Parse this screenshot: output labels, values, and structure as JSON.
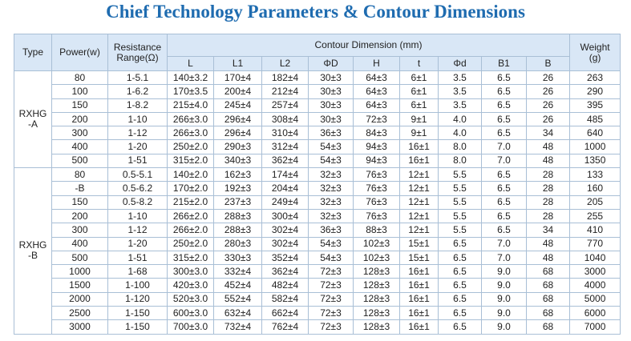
{
  "header": {
    "title": "Chief Technology Parameters & Contour Dimensions"
  },
  "table": {
    "head": {
      "type": "Type",
      "power": "Power(w)",
      "resistance_lines": [
        "Resistance",
        "Range(Ω)"
      ],
      "contour": "Contour Dimension (mm)",
      "weight_lines": [
        "Weight",
        "(g)"
      ],
      "dims": [
        "L",
        "L1",
        "L2",
        "ΦD",
        "H",
        "t",
        "Φd",
        "B1",
        "B"
      ]
    },
    "groups": [
      {
        "type_lines": [
          "RXHG",
          "-A"
        ],
        "rows": [
          [
            "80",
            "1-5.1",
            "140±3.2",
            "170±4",
            "182±4",
            "30±3",
            "64±3",
            "6±1",
            "3.5",
            "6.5",
            "26",
            "263"
          ],
          [
            "100",
            "1-6.2",
            "170±3.5",
            "200±4",
            "212±4",
            "30±3",
            "64±3",
            "6±1",
            "3.5",
            "6.5",
            "26",
            "290"
          ],
          [
            "150",
            "1-8.2",
            "215±4.0",
            "245±4",
            "257±4",
            "30±3",
            "64±3",
            "6±1",
            "3.5",
            "6.5",
            "26",
            "395"
          ],
          [
            "200",
            "1-10",
            "266±3.0",
            "296±4",
            "308±4",
            "30±3",
            "72±3",
            "9±1",
            "4.0",
            "6.5",
            "26",
            "485"
          ],
          [
            "300",
            "1-12",
            "266±3.0",
            "296±4",
            "310±4",
            "36±3",
            "84±3",
            "9±1",
            "4.0",
            "6.5",
            "34",
            "640"
          ],
          [
            "400",
            "1-20",
            "250±2.0",
            "290±3",
            "312±4",
            "54±3",
            "94±3",
            "16±1",
            "8.0",
            "7.0",
            "48",
            "1000"
          ],
          [
            "500",
            "1-51",
            "315±2.0",
            "340±3",
            "362±4",
            "54±3",
            "94±3",
            "16±1",
            "8.0",
            "7.0",
            "48",
            "1350"
          ]
        ]
      },
      {
        "type_lines": [
          "RXHG",
          "-B"
        ],
        "rows": [
          [
            "80",
            "0.5-5.1",
            "140±2.0",
            "162±3",
            "174±4",
            "32±3",
            "76±3",
            "12±1",
            "5.5",
            "6.5",
            "28",
            "133"
          ],
          [
            "-B",
            "0.5-6.2",
            "170±2.0",
            "192±3",
            "204±4",
            "32±3",
            "76±3",
            "12±1",
            "5.5",
            "6.5",
            "28",
            "160"
          ],
          [
            "150",
            "0.5-8.2",
            "215±2.0",
            "237±3",
            "249±4",
            "32±3",
            "76±3",
            "12±1",
            "5.5",
            "6.5",
            "28",
            "205"
          ],
          [
            "200",
            "1-10",
            "266±2.0",
            "288±3",
            "300±4",
            "32±3",
            "76±3",
            "12±1",
            "5.5",
            "6.5",
            "28",
            "255"
          ],
          [
            "300",
            "1-12",
            "266±2.0",
            "288±3",
            "302±4",
            "36±3",
            "88±3",
            "12±1",
            "5.5",
            "6.5",
            "34",
            "410"
          ],
          [
            "400",
            "1-20",
            "250±2.0",
            "280±3",
            "302±4",
            "54±3",
            "102±3",
            "15±1",
            "6.5",
            "7.0",
            "48",
            "770"
          ],
          [
            "500",
            "1-51",
            "315±2.0",
            "330±3",
            "352±4",
            "54±3",
            "102±3",
            "15±1",
            "6.5",
            "7.0",
            "48",
            "1040"
          ],
          [
            "1000",
            "1-68",
            "300±3.0",
            "332±4",
            "362±4",
            "72±3",
            "128±3",
            "16±1",
            "6.5",
            "9.0",
            "68",
            "3000"
          ],
          [
            "1500",
            "1-100",
            "420±3.0",
            "452±4",
            "482±4",
            "72±3",
            "128±3",
            "16±1",
            "6.5",
            "9.0",
            "68",
            "4000"
          ],
          [
            "2000",
            "1-120",
            "520±3.0",
            "552±4",
            "582±4",
            "72±3",
            "128±3",
            "16±1",
            "6.5",
            "9.0",
            "68",
            "5000"
          ],
          [
            "2500",
            "1-150",
            "600±3.0",
            "632±4",
            "662±4",
            "72±3",
            "128±3",
            "16±1",
            "6.5",
            "9.0",
            "68",
            "6000"
          ],
          [
            "3000",
            "1-150",
            "700±3.0",
            "732±4",
            "762±4",
            "72±3",
            "128±3",
            "16±1",
            "6.5",
            "9.0",
            "68",
            "7000"
          ]
        ]
      }
    ]
  }
}
